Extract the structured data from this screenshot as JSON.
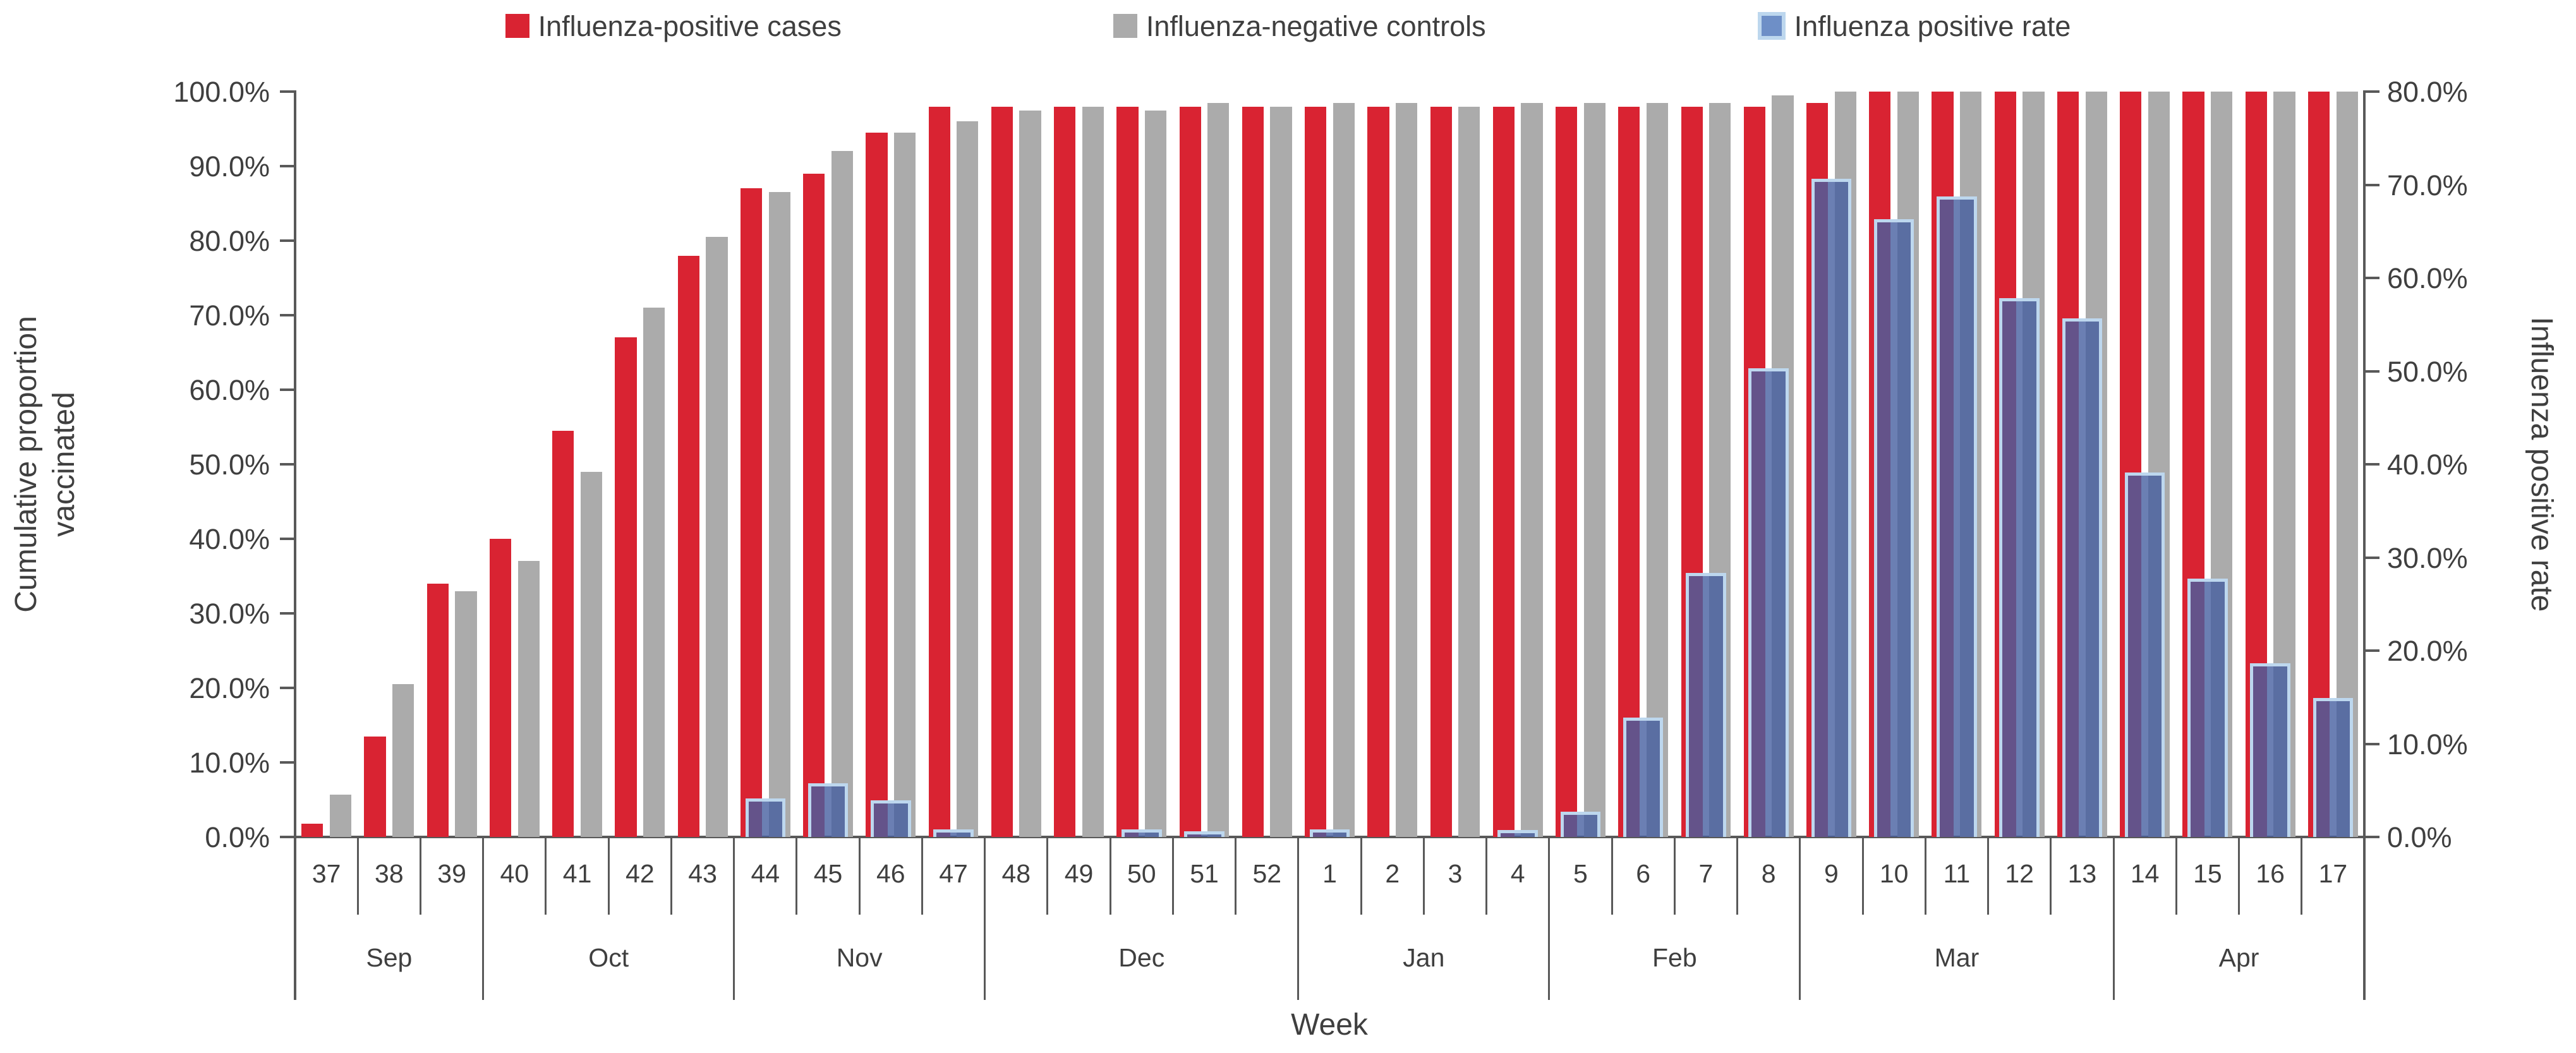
{
  "legend": {
    "items": [
      {
        "label": "Influenza-positive cases",
        "color": "#D92332",
        "border": ""
      },
      {
        "label": "Influenza-negative controls",
        "color": "#ABABAB",
        "border": ""
      },
      {
        "label": "Influenza positive rate",
        "color": "#6E8FC7",
        "border": "#BDD7EE"
      }
    ]
  },
  "axes": {
    "left_title_line1": "Cumulative proportion",
    "left_title_line2": "vaccinated",
    "right_title": "Influenza positive rate",
    "x_title": "Week",
    "left_tick_labels": [
      "100.0%",
      "90.0%",
      "80.0%",
      "70.0%",
      "60.0%",
      "50.0%",
      "40.0%",
      "30.0%",
      "20.0%",
      "10.0%",
      "0.0%"
    ],
    "right_tick_labels": [
      "80.0%",
      "70.0%",
      "60.0%",
      "50.0%",
      "40.0%",
      "30.0%",
      "20.0%",
      "10.0%",
      "0.0%"
    ]
  },
  "colors": {
    "positive_cases": "#D92332",
    "negative_controls": "#ABABAB",
    "positive_rate_fill": "rgba(70,95,160,0.8)",
    "positive_rate_border": "#BDD7EE",
    "axis_line": "#595959",
    "text": "#3f3f3f"
  },
  "chart_data": {
    "type": "bar",
    "title": "",
    "xlabel": "Week",
    "ylabel_left": "Cumulative proportion vaccinated",
    "ylabel_right": "Influenza positive rate",
    "left_axis": {
      "min": 0,
      "max": 100,
      "step": 10,
      "unit": "%"
    },
    "right_axis": {
      "min": 0,
      "max": 80,
      "step": 10,
      "unit": "%"
    },
    "grid": false,
    "legend_position": "top",
    "categories": [
      "37",
      "38",
      "39",
      "40",
      "41",
      "42",
      "43",
      "44",
      "45",
      "46",
      "47",
      "48",
      "49",
      "50",
      "51",
      "52",
      "1",
      "2",
      "3",
      "4",
      "5",
      "6",
      "7",
      "8",
      "9",
      "10",
      "11",
      "12",
      "13",
      "14",
      "15",
      "16",
      "17"
    ],
    "months": [
      {
        "label": "Sep",
        "weeks": 3
      },
      {
        "label": "Oct",
        "weeks": 4
      },
      {
        "label": "Nov",
        "weeks": 4
      },
      {
        "label": "Dec",
        "weeks": 5
      },
      {
        "label": "Jan",
        "weeks": 4
      },
      {
        "label": "Feb",
        "weeks": 4
      },
      {
        "label": "Mar",
        "weeks": 5
      },
      {
        "label": "Apr",
        "weeks": 4
      }
    ],
    "series": [
      {
        "name": "Influenza-positive cases",
        "axis": "left",
        "values": [
          1.8,
          13.5,
          34,
          40,
          54.5,
          67,
          78,
          87,
          89,
          94.5,
          98,
          98,
          98,
          98,
          98,
          98,
          98,
          98,
          98,
          98,
          98,
          98,
          98,
          98,
          98.5,
          100,
          100,
          100,
          100,
          100,
          100,
          100,
          100
        ]
      },
      {
        "name": "Influenza-negative controls",
        "axis": "left",
        "values": [
          5.7,
          20.5,
          33,
          37,
          49,
          71,
          80.5,
          86.5,
          92,
          94.5,
          96,
          97.5,
          98,
          97.5,
          98.5,
          98,
          98.5,
          98.5,
          98,
          98.5,
          98.5,
          98.5,
          98.5,
          99.5,
          100,
          100,
          100,
          100,
          100,
          100,
          100,
          100,
          100
        ]
      },
      {
        "name": "Influenza positive rate",
        "axis": "right",
        "values": [
          0,
          0,
          0,
          0,
          0,
          0,
          0,
          3.8,
          5.4,
          3.6,
          0.5,
          0,
          0,
          0.5,
          0.3,
          0,
          0.5,
          0,
          0,
          0.4,
          2.4,
          12.5,
          28,
          50,
          70.3,
          66,
          68.4,
          57.5,
          55.3,
          38.8,
          27.4,
          18.3,
          14.6
        ]
      }
    ]
  }
}
